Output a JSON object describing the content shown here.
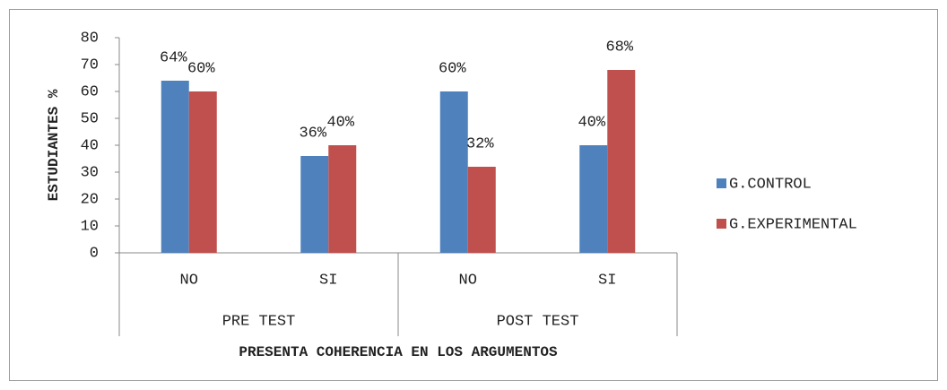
{
  "chart_data": {
    "type": "bar",
    "y_label": "ESTUDIANTES %",
    "x_label": "PRESENTA COHERENCIA EN LOS ARGUMENTOS",
    "categories": [
      "NO",
      "SI",
      "NO",
      "SI"
    ],
    "groups": [
      "PRE TEST",
      "POST TEST"
    ],
    "series": [
      {
        "name": "G.CONTROL",
        "color": "#4f81bd",
        "values": [
          64,
          36,
          60,
          40
        ],
        "value_labels": [
          "64%",
          "36%",
          "60%",
          "40%"
        ]
      },
      {
        "name": "G.EXPERIMENTAL",
        "color": "#c0504d",
        "values": [
          60,
          40,
          32,
          68
        ],
        "value_labels": [
          "60%",
          "40%",
          "32%",
          "68%"
        ]
      }
    ],
    "ylim": [
      0,
      80
    ],
    "yticks": [
      0,
      10,
      20,
      30,
      40,
      50,
      60,
      70,
      80
    ],
    "legend": "right"
  }
}
